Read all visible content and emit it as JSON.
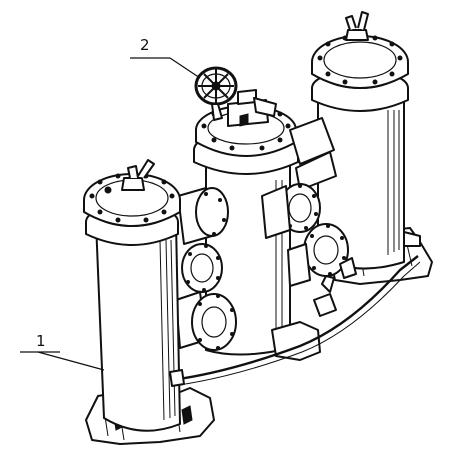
{
  "callouts": [
    {
      "id": "1",
      "label": "1"
    },
    {
      "id": "2",
      "label": "2"
    }
  ],
  "colors": {
    "ink": "#111111",
    "paper": "#ffffff"
  }
}
